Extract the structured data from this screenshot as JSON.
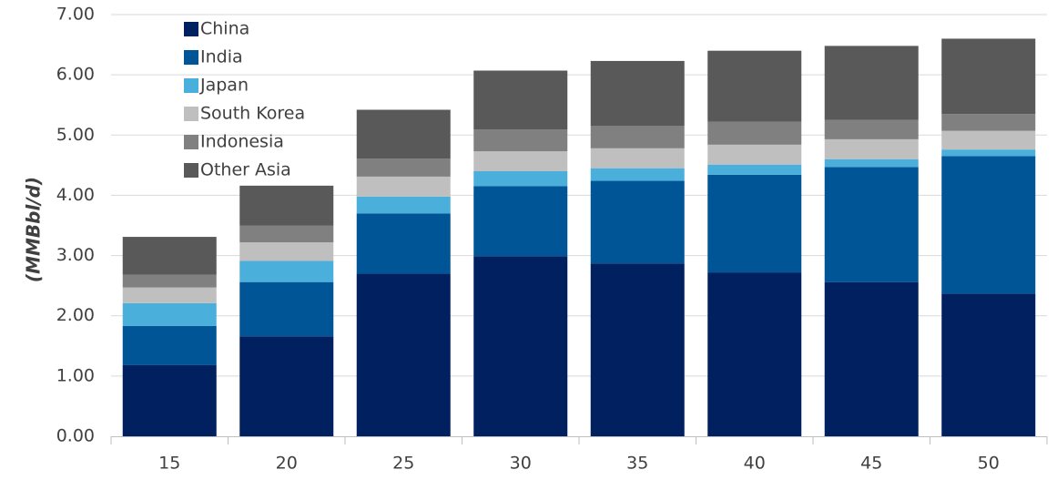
{
  "chart_data": {
    "type": "bar",
    "stacked": true,
    "title": "",
    "xlabel": "",
    "ylabel": "(MMBbl/d)",
    "categories": [
      "15",
      "20",
      "25",
      "30",
      "35",
      "40",
      "45",
      "50"
    ],
    "ylim": [
      0,
      7
    ],
    "yticks": [
      "0.00",
      "1.00",
      "2.00",
      "3.00",
      "4.00",
      "5.00",
      "6.00",
      "7.00"
    ],
    "grid": true,
    "legend_position": "top-left",
    "series": [
      {
        "name": "China",
        "color": "#002060",
        "values": [
          1.18,
          1.66,
          2.7,
          2.99,
          2.87,
          2.72,
          2.56,
          2.37
        ]
      },
      {
        "name": "India",
        "color": "#005596",
        "values": [
          0.65,
          0.9,
          1.0,
          1.16,
          1.37,
          1.62,
          1.91,
          2.28
        ]
      },
      {
        "name": "Japan",
        "color": "#4bafdb",
        "values": [
          0.38,
          0.35,
          0.28,
          0.25,
          0.21,
          0.17,
          0.13,
          0.11
        ]
      },
      {
        "name": "South Korea",
        "color": "#bfbfbf",
        "values": [
          0.26,
          0.31,
          0.33,
          0.33,
          0.33,
          0.33,
          0.33,
          0.31
        ]
      },
      {
        "name": "Indonesia",
        "color": "#808080",
        "values": [
          0.21,
          0.28,
          0.3,
          0.36,
          0.37,
          0.38,
          0.32,
          0.28
        ]
      },
      {
        "name": "Other Asia",
        "color": "#595959",
        "values": [
          0.63,
          0.66,
          0.81,
          0.98,
          1.08,
          1.18,
          1.23,
          1.25
        ]
      }
    ]
  }
}
